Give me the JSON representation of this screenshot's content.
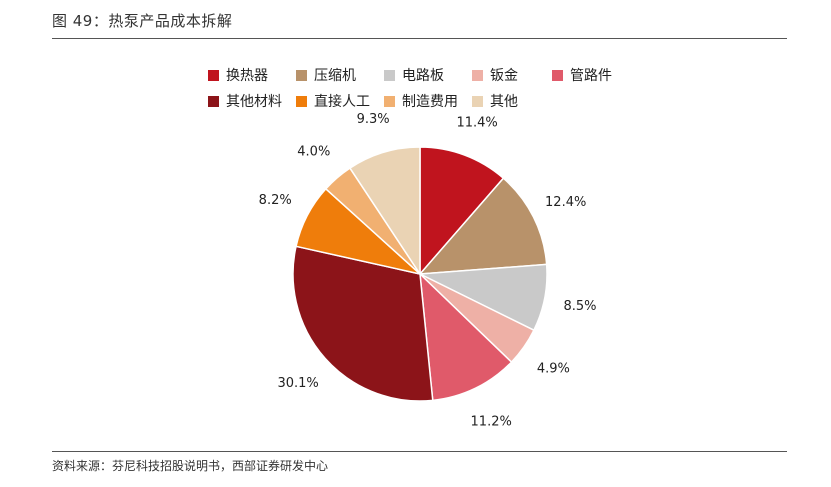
{
  "figure": {
    "title": "图 49：热泵产品成本拆解",
    "source": "资料来源：芬尼科技招股说明书，西部证券研发中心"
  },
  "chart_data": {
    "type": "pie",
    "start_angle_deg": 0,
    "direction": "clockwise",
    "legend_position": "top",
    "slices": [
      {
        "label": "换热器",
        "value": 11.4,
        "display": "11.4%",
        "color": "#c0141e"
      },
      {
        "label": "压缩机",
        "value": 12.4,
        "display": "12.4%",
        "color": "#b8926a"
      },
      {
        "label": "电路板",
        "value": 8.5,
        "display": "8.5%",
        "color": "#c9c9c9"
      },
      {
        "label": "钣金",
        "value": 4.9,
        "display": "4.9%",
        "color": "#eeb0a6"
      },
      {
        "label": "管路件",
        "value": 11.2,
        "display": "11.2%",
        "color": "#e05a6a"
      },
      {
        "label": "其他材料",
        "value": 30.1,
        "display": "30.1%",
        "color": "#8c1419"
      },
      {
        "label": "直接人工",
        "value": 8.2,
        "display": "8.2%",
        "color": "#ef7d0b"
      },
      {
        "label": "制造费用",
        "value": 4.0,
        "display": "4.0%",
        "color": "#f1b071"
      },
      {
        "label": "其他",
        "value": 9.3,
        "display": "9.3%",
        "color": "#ead3b4"
      }
    ]
  }
}
